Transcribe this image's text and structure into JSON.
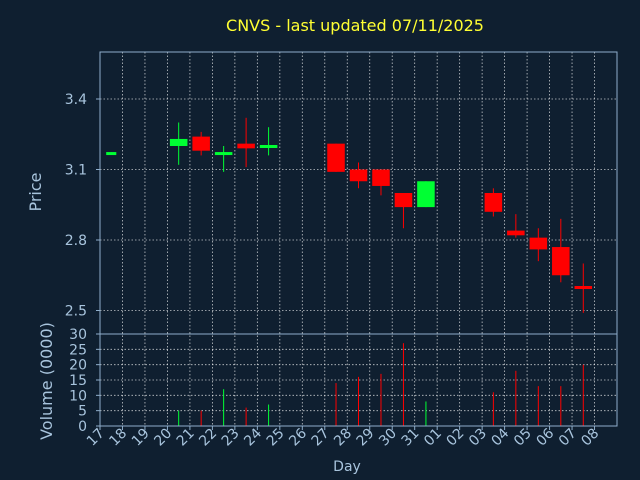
{
  "colors": {
    "background": "#0f1f30",
    "text": "#a8c4dd",
    "title": "#ffff33",
    "axis": "#8faecb",
    "grid": "#ffffff",
    "up": "#00ff33",
    "down": "#ff0000"
  },
  "chart_data": [
    {
      "type": "candlestick",
      "title": "CNVS - last updated 07/11/2025",
      "ylabel": "Price",
      "ylim": [
        2.4,
        3.6
      ],
      "yticks": [
        "3.4",
        "3.1",
        "2.8",
        "2.5"
      ],
      "grid": true,
      "candles": [
        {
          "date": "17",
          "open": 3.17,
          "high": 3.17,
          "low": 3.17,
          "close": 3.17
        },
        {
          "date": "20",
          "open": 3.2,
          "high": 3.3,
          "low": 3.12,
          "close": 3.23
        },
        {
          "date": "21",
          "open": 3.24,
          "high": 3.26,
          "low": 3.16,
          "close": 3.18
        },
        {
          "date": "22",
          "open": 3.16,
          "high": 3.2,
          "low": 3.09,
          "close": 3.17
        },
        {
          "date": "23",
          "open": 3.21,
          "high": 3.32,
          "low": 3.11,
          "close": 3.19
        },
        {
          "date": "24",
          "open": 3.19,
          "high": 3.28,
          "low": 3.16,
          "close": 3.2
        },
        {
          "date": "27",
          "open": 3.21,
          "high": 3.21,
          "low": 3.09,
          "close": 3.09
        },
        {
          "date": "28",
          "open": 3.1,
          "high": 3.13,
          "low": 3.02,
          "close": 3.05
        },
        {
          "date": "29",
          "open": 3.1,
          "high": 3.1,
          "low": 2.99,
          "close": 3.03
        },
        {
          "date": "30",
          "open": 3.0,
          "high": 3.0,
          "low": 2.85,
          "close": 2.94
        },
        {
          "date": "31",
          "open": 2.94,
          "high": 3.05,
          "low": 2.94,
          "close": 3.05
        },
        {
          "date": "03",
          "open": 3.0,
          "high": 3.02,
          "low": 2.9,
          "close": 2.92
        },
        {
          "date": "04",
          "open": 2.84,
          "high": 2.91,
          "low": 2.81,
          "close": 2.82
        },
        {
          "date": "05",
          "open": 2.81,
          "high": 2.85,
          "low": 2.71,
          "close": 2.76
        },
        {
          "date": "06",
          "open": 2.77,
          "high": 2.89,
          "low": 2.62,
          "close": 2.65
        },
        {
          "date": "07",
          "open": 2.6,
          "high": 2.7,
          "low": 2.49,
          "close": 2.59
        }
      ]
    },
    {
      "type": "bar",
      "xlabel": "Day",
      "ylabel": "Volume (0000)",
      "ylim": [
        0,
        30
      ],
      "yticks": [
        "30",
        "25",
        "20",
        "15",
        "10",
        "5",
        "0"
      ],
      "categories": [
        "17",
        "18",
        "19",
        "20",
        "21",
        "22",
        "23",
        "24",
        "25",
        "26",
        "27",
        "28",
        "29",
        "30",
        "31",
        "01",
        "02",
        "03",
        "04",
        "05",
        "06",
        "07",
        "08"
      ],
      "values": [
        0,
        0,
        0,
        5,
        5,
        12,
        6,
        7,
        0,
        0,
        14,
        16,
        17,
        27,
        8,
        0,
        0,
        11,
        18,
        13,
        13,
        20,
        0
      ],
      "bar_colors": [
        "up",
        "up",
        "up",
        "up",
        "down",
        "up",
        "down",
        "up",
        "up",
        "up",
        "down",
        "down",
        "down",
        "down",
        "up",
        "up",
        "up",
        "down",
        "down",
        "down",
        "down",
        "down",
        "up"
      ]
    }
  ]
}
